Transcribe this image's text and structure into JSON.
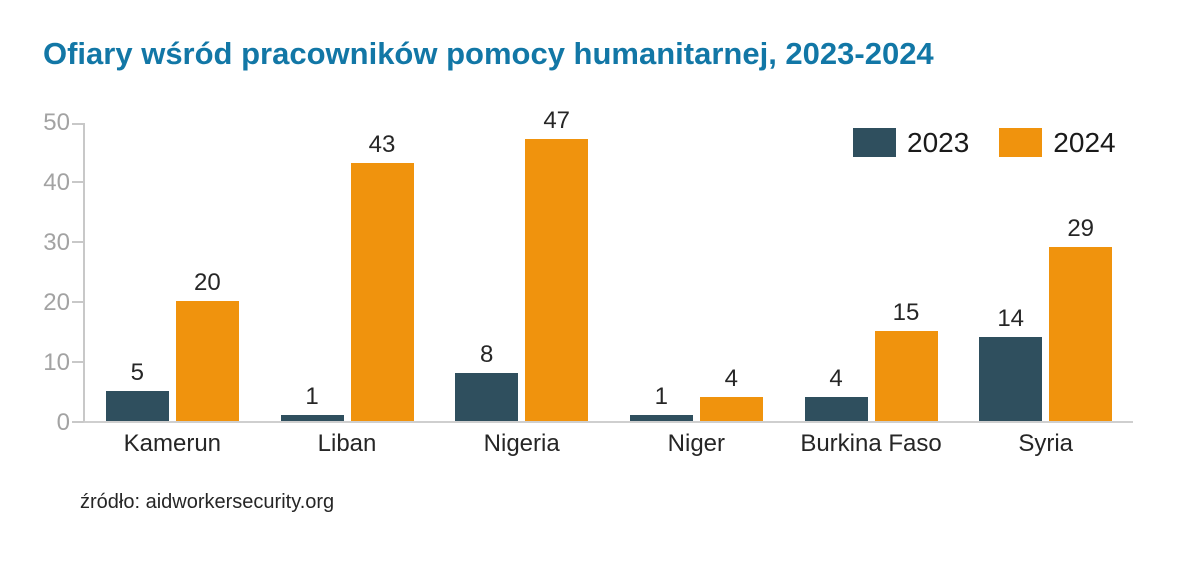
{
  "title": "Ofiary wśród pracowników pomocy humanitarnej, 2023-2024",
  "source_note": "źródło: aidworkersecurity.org",
  "legend": {
    "items": [
      {
        "label": "2023",
        "color": "#2f4f5e"
      },
      {
        "label": "2024",
        "color": "#f0930d"
      }
    ]
  },
  "colors": {
    "title_text": "#1277a6",
    "axis_line": "#c8c8c8",
    "ytick_label": "#a3a3a3",
    "value_label": "#262626",
    "category_label": "#262626",
    "series_2023": "#2f4f5e",
    "series_2024": "#f0930d",
    "background": "#ffffff"
  },
  "chart_data": {
    "type": "bar",
    "title": "Ofiary wśród pracowników pomocy humanitarnej, 2023-2024",
    "xlabel": "",
    "ylabel": "",
    "categories": [
      "Kamerun",
      "Liban",
      "Nigeria",
      "Niger",
      "Burkina Faso",
      "Syria"
    ],
    "series": [
      {
        "name": "2023",
        "color": "#2f4f5e",
        "values": [
          5,
          1,
          8,
          1,
          4,
          14
        ]
      },
      {
        "name": "2024",
        "color": "#f0930d",
        "values": [
          20,
          43,
          47,
          4,
          15,
          29
        ]
      }
    ],
    "ylim": [
      0,
      50
    ],
    "yticks": [
      0,
      10,
      20,
      30,
      40,
      50
    ],
    "grid": false,
    "bar_value_labels": true,
    "legend_position": "top-right"
  }
}
